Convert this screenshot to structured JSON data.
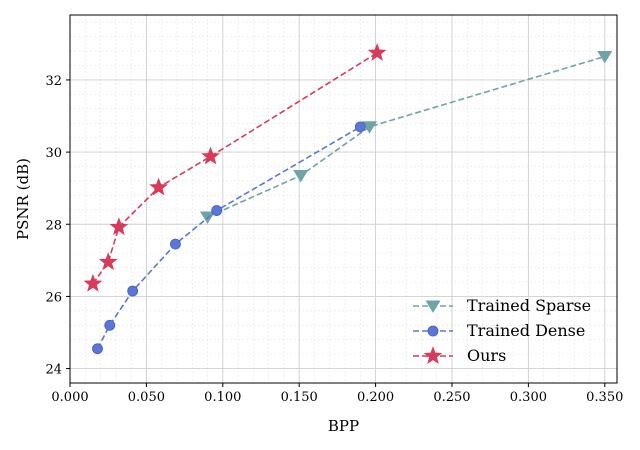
{
  "chart_data": {
    "type": "line",
    "xlabel": "BPP",
    "ylabel": "PSNR (dB)",
    "xlim": [
      0.0,
      0.358
    ],
    "ylim": [
      23.6,
      33.8
    ],
    "x_ticks": [
      "0.000",
      "0.050",
      "0.100",
      "0.150",
      "0.200",
      "0.250",
      "0.300",
      "0.350"
    ],
    "x_tick_values": [
      0.0,
      0.05,
      0.1,
      0.15,
      0.2,
      0.25,
      0.3,
      0.35
    ],
    "y_ticks": [
      "24",
      "26",
      "28",
      "30",
      "32"
    ],
    "y_tick_values": [
      24,
      26,
      28,
      30,
      32
    ],
    "grid": true,
    "minor_grid": true,
    "legend_position": "bottom-right",
    "series": [
      {
        "name": "Trained Sparse",
        "color": "#6fa3a6",
        "marker": "triangle-down",
        "linestyle": "dashed",
        "x": [
          0.09,
          0.151,
          0.196,
          0.35
        ],
        "y": [
          28.2,
          29.35,
          30.7,
          32.65
        ]
      },
      {
        "name": "Trained Dense",
        "color": "#5b76d6",
        "marker": "circle",
        "linestyle": "dashed",
        "x": [
          0.018,
          0.026,
          0.041,
          0.069,
          0.096,
          0.19
        ],
        "y": [
          24.55,
          25.2,
          26.15,
          27.45,
          28.38,
          30.7
        ]
      },
      {
        "name": "Ours",
        "color": "#d93a5a",
        "marker": "star",
        "linestyle": "dashed",
        "x": [
          0.015,
          0.025,
          0.032,
          0.058,
          0.092,
          0.201
        ],
        "y": [
          26.35,
          26.95,
          27.92,
          29.02,
          29.88,
          32.75
        ]
      }
    ]
  }
}
